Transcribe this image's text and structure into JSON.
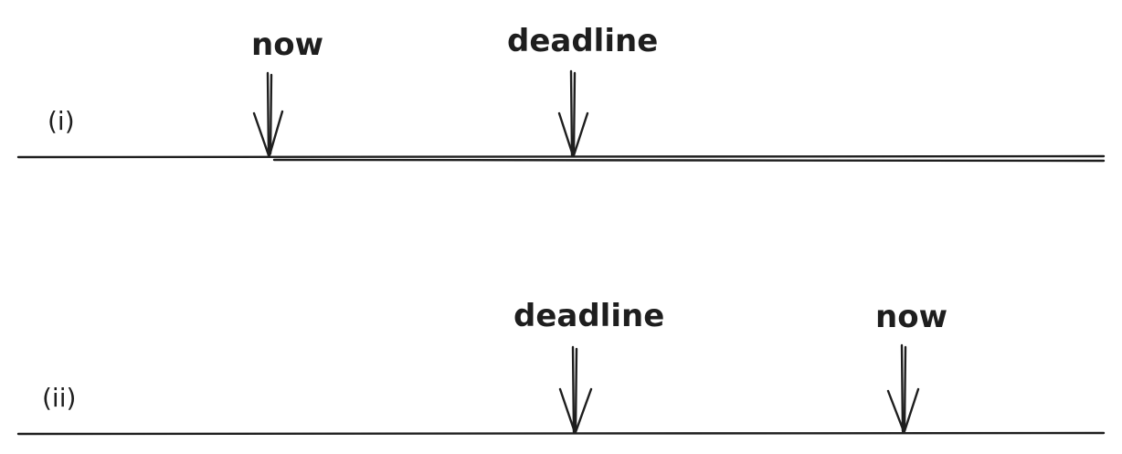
{
  "timelines": [
    {
      "label": "(i)",
      "markers": [
        {
          "text": "now"
        },
        {
          "text": "deadline"
        }
      ]
    },
    {
      "label": "(ii)",
      "markers": [
        {
          "text": "deadline"
        },
        {
          "text": "now"
        }
      ]
    }
  ]
}
